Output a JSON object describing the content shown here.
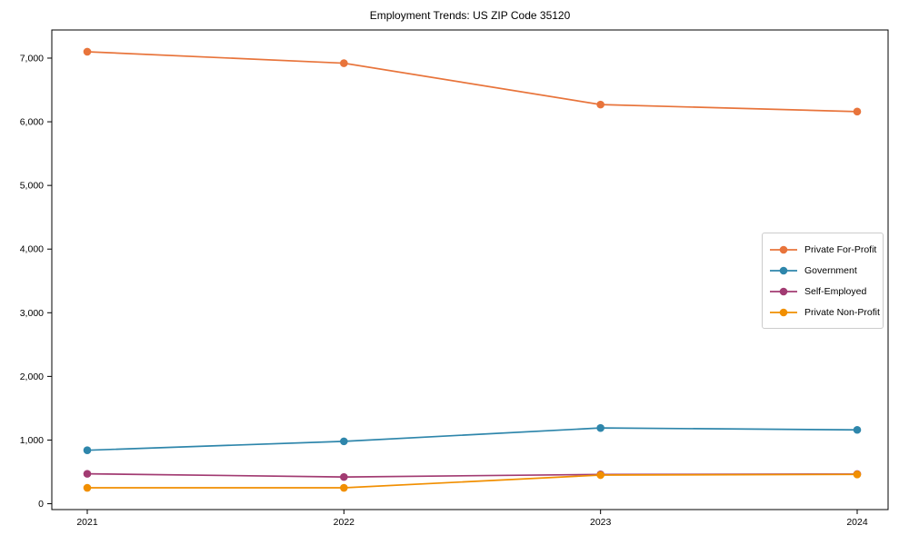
{
  "page": {
    "background": "#ffffff",
    "text_color": "#000000",
    "spine_color": "#000000"
  },
  "chart_data": {
    "type": "line",
    "title": "Employment Trends: US ZIP Code 35120",
    "xlabel": "",
    "ylabel": "",
    "grid": false,
    "legend_position": "center right",
    "marker": "circle",
    "categories": [
      "2021",
      "2022",
      "2023",
      "2024"
    ],
    "x": [
      2021,
      2022,
      2023,
      2024
    ],
    "series": [
      {
        "name": "Private For-Profit",
        "color": "#E8743B",
        "values": [
          7100,
          6920,
          6270,
          6160
        ]
      },
      {
        "name": "Government",
        "color": "#2E86AB",
        "values": [
          840,
          980,
          1190,
          1160
        ]
      },
      {
        "name": "Self-Employed",
        "color": "#A23B72",
        "values": [
          470,
          420,
          460,
          465
        ]
      },
      {
        "name": "Private Non-Profit",
        "color": "#F18F01",
        "values": [
          250,
          250,
          450,
          460
        ]
      }
    ],
    "ylim": [
      -92,
      7442
    ],
    "yticks": [
      0,
      1000,
      2000,
      3000,
      4000,
      5000,
      6000,
      7000
    ],
    "ytick_labels": [
      "0",
      "1,000",
      "2,000",
      "3,000",
      "4,000",
      "5,000",
      "6,000",
      "7,000"
    ]
  }
}
